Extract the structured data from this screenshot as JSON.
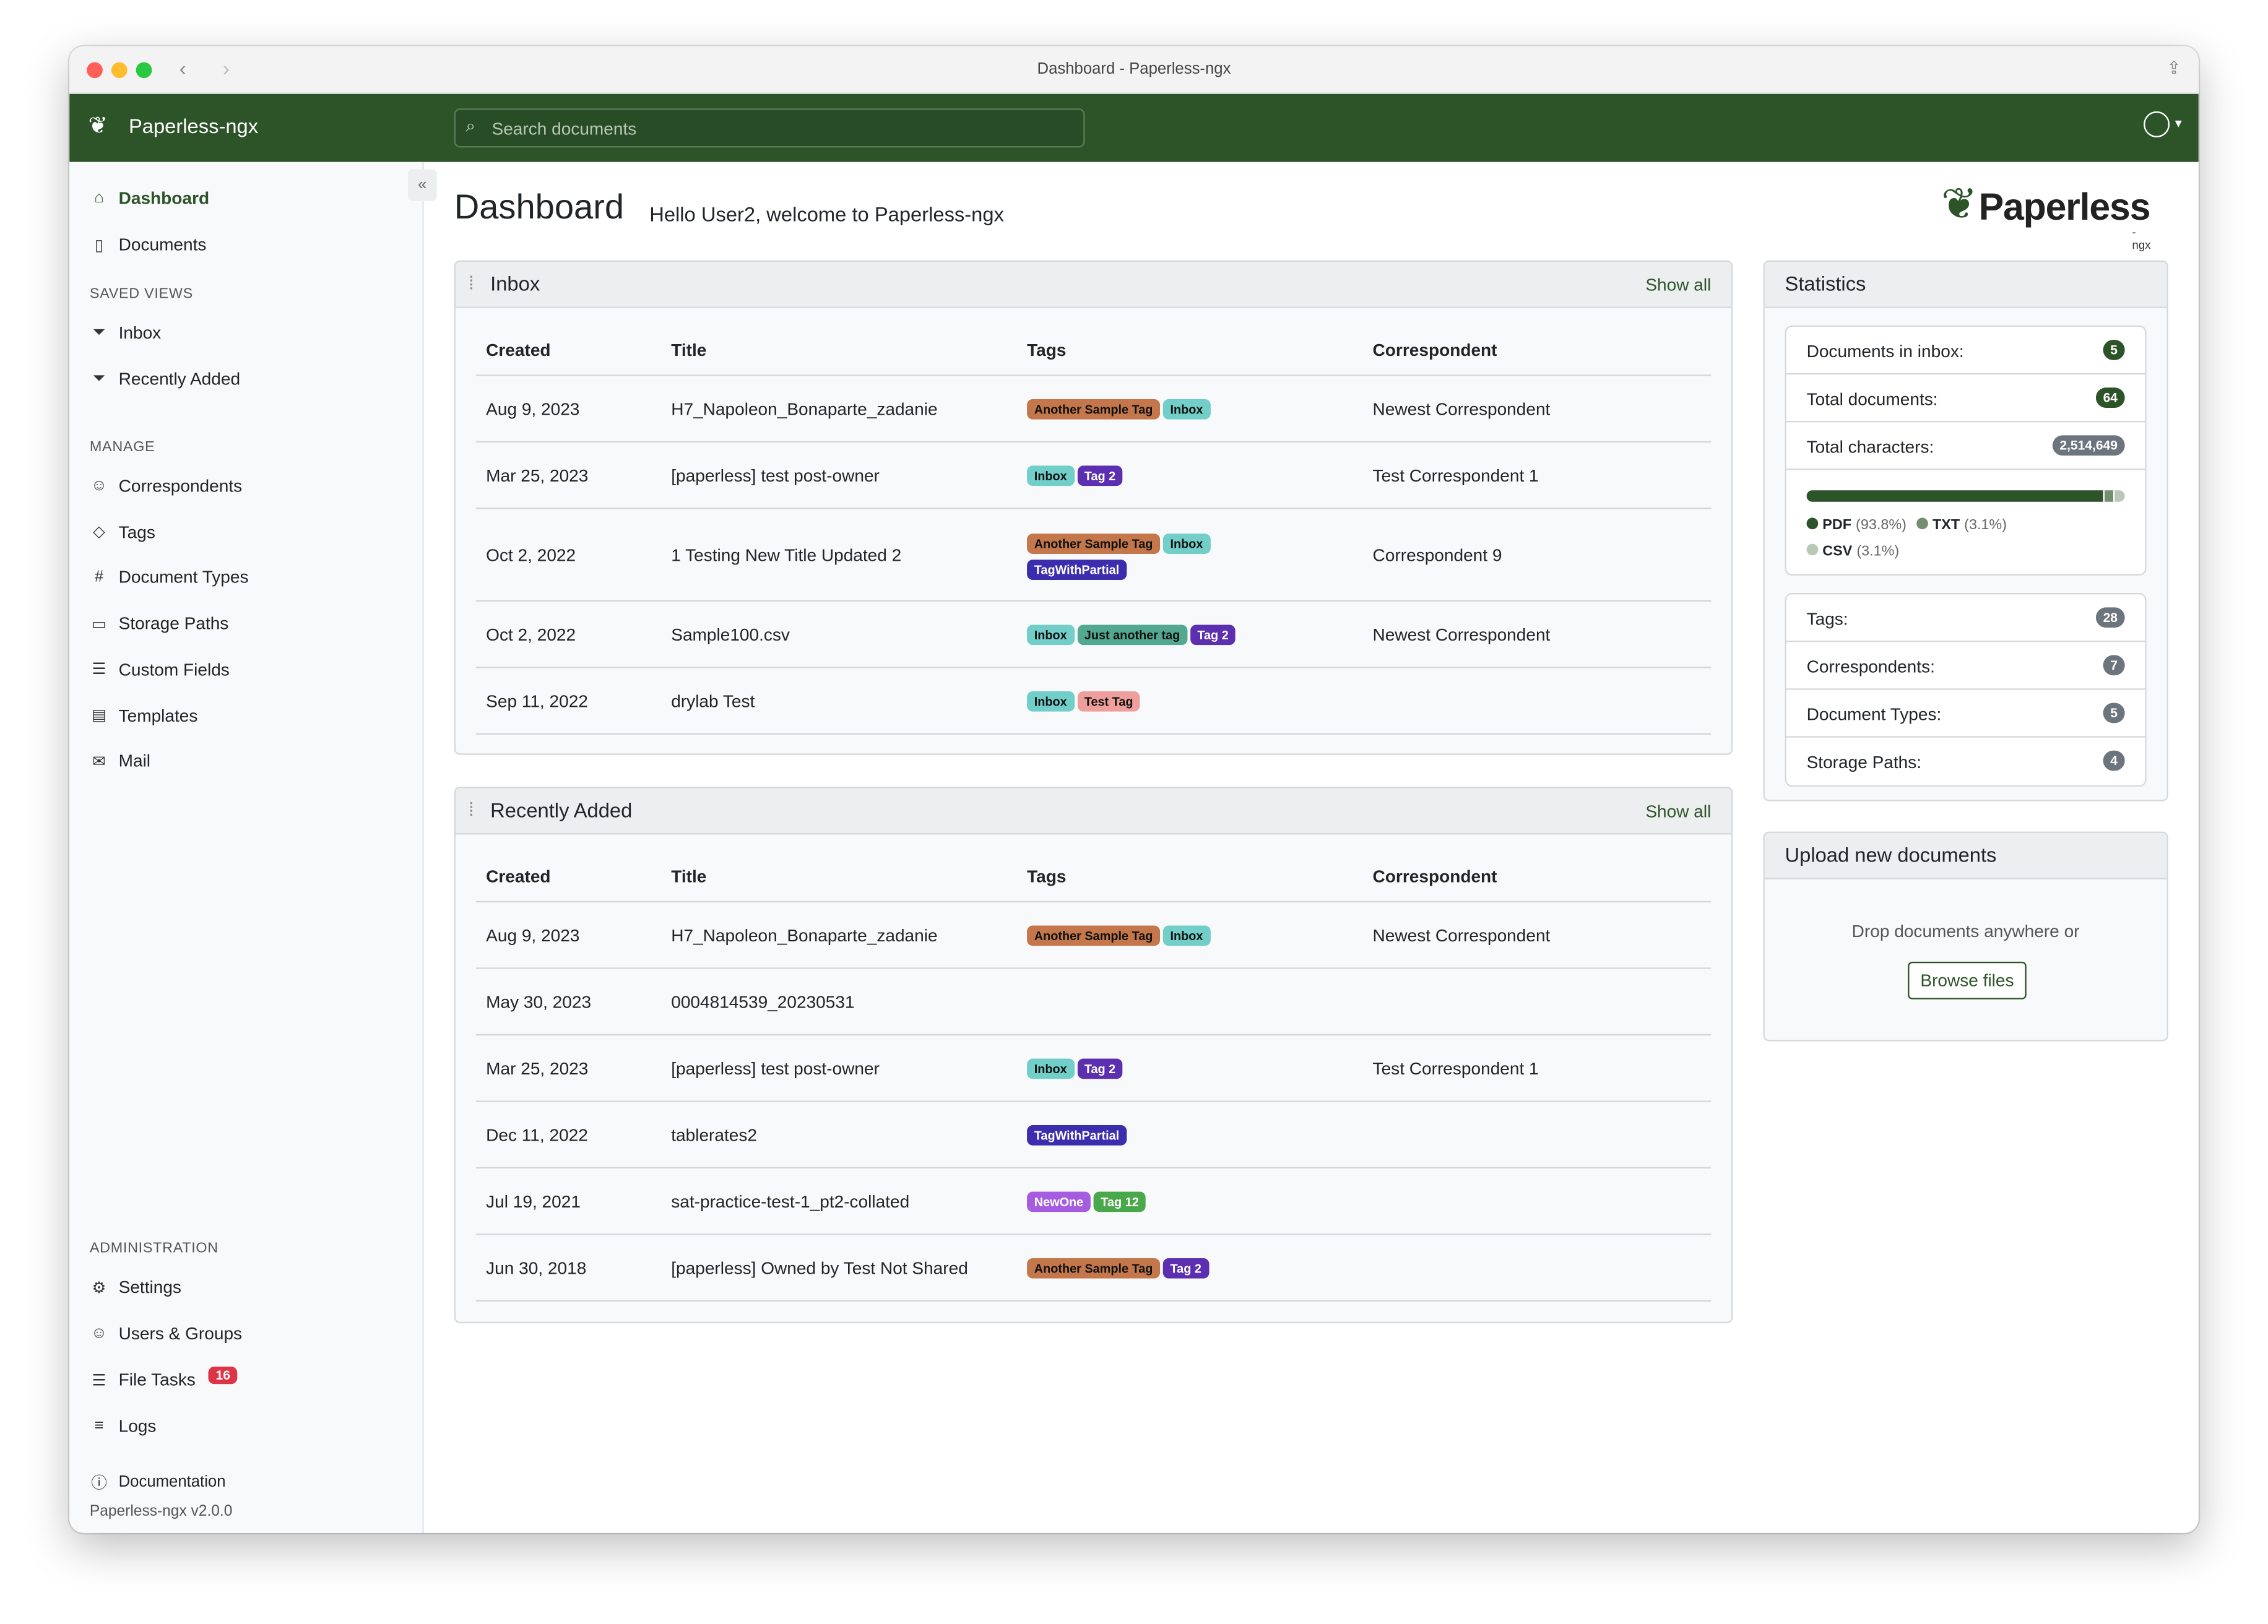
{
  "window": {
    "title": "Dashboard - Paperless-ngx"
  },
  "navbar": {
    "brand": "Paperless-ngx",
    "search_placeholder": "Search documents"
  },
  "sidebar": {
    "main": [
      {
        "label": "Dashboard",
        "icon": "house-icon"
      },
      {
        "label": "Documents",
        "icon": "file-icon"
      }
    ],
    "saved_views_heading": "SAVED VIEWS",
    "saved_views": [
      {
        "label": "Inbox"
      },
      {
        "label": "Recently Added"
      }
    ],
    "manage_heading": "MANAGE",
    "manage": [
      {
        "label": "Correspondents"
      },
      {
        "label": "Tags"
      },
      {
        "label": "Document Types"
      },
      {
        "label": "Storage Paths"
      },
      {
        "label": "Custom Fields"
      },
      {
        "label": "Templates"
      },
      {
        "label": "Mail"
      }
    ],
    "admin_heading": "ADMINISTRATION",
    "admin": [
      {
        "label": "Settings"
      },
      {
        "label": "Users & Groups"
      },
      {
        "label": "File Tasks",
        "badge": "16"
      },
      {
        "label": "Logs"
      }
    ],
    "documentation": "Documentation",
    "version": "Paperless-ngx v2.0.0"
  },
  "page": {
    "title": "Dashboard",
    "welcome": "Hello User2, welcome to Paperless-ngx",
    "logo_text": "Paperless",
    "logo_sub": "-ngx"
  },
  "columns": [
    "Created",
    "Title",
    "Tags",
    "Correspondent"
  ],
  "tag_colors": {
    "Another Sample Tag": "#c3774a",
    "Inbox": "#72cec8",
    "Tag 2": "#5b2fb0",
    "TagWithPartial": "#3c2dae",
    "Just another tag": "#52a98f",
    "Test Tag": "#ef9f9b",
    "NewOne": "#a55ce0",
    "Tag 12": "#49a84a"
  },
  "inbox": {
    "title": "Inbox",
    "show_all": "Show all",
    "rows": [
      {
        "created": "Aug 9, 2023",
        "title": "H7_Napoleon_Bonaparte_zadanie",
        "tags": [
          "Another Sample Tag",
          "Inbox"
        ],
        "correspondent": "Newest Correspondent"
      },
      {
        "created": "Mar 25, 2023",
        "title": "[paperless] test post-owner",
        "tags": [
          "Inbox",
          "Tag 2"
        ],
        "correspondent": "Test Correspondent 1"
      },
      {
        "created": "Oct 2, 2022",
        "title": "1 Testing New Title Updated 2",
        "tags": [
          "Another Sample Tag",
          "Inbox",
          "TagWithPartial"
        ],
        "correspondent": "Correspondent 9"
      },
      {
        "created": "Oct 2, 2022",
        "title": "Sample100.csv",
        "tags": [
          "Inbox",
          "Just another tag",
          "Tag 2"
        ],
        "correspondent": "Newest Correspondent"
      },
      {
        "created": "Sep 11, 2022",
        "title": "drylab Test",
        "tags": [
          "Inbox",
          "Test Tag"
        ],
        "correspondent": ""
      }
    ]
  },
  "recent": {
    "title": "Recently Added",
    "show_all": "Show all",
    "rows": [
      {
        "created": "Aug 9, 2023",
        "title": "H7_Napoleon_Bonaparte_zadanie",
        "tags": [
          "Another Sample Tag",
          "Inbox"
        ],
        "correspondent": "Newest Correspondent"
      },
      {
        "created": "May 30, 2023",
        "title": "0004814539_20230531",
        "tags": [],
        "correspondent": ""
      },
      {
        "created": "Mar 25, 2023",
        "title": "[paperless] test post-owner",
        "tags": [
          "Inbox",
          "Tag 2"
        ],
        "correspondent": "Test Correspondent 1"
      },
      {
        "created": "Dec 11, 2022",
        "title": "tablerates2",
        "tags": [
          "TagWithPartial"
        ],
        "correspondent": ""
      },
      {
        "created": "Jul 19, 2021",
        "title": "sat-practice-test-1_pt2-collated",
        "tags": [
          "NewOne",
          "Tag 12"
        ],
        "correspondent": ""
      },
      {
        "created": "Jun 30, 2018",
        "title": "[paperless] Owned by Test Not Shared",
        "tags": [
          "Another Sample Tag",
          "Tag 2"
        ],
        "correspondent": ""
      }
    ]
  },
  "statistics": {
    "title": "Statistics",
    "top": [
      {
        "label": "Documents in inbox:",
        "value": "5",
        "color": "#2c5428"
      },
      {
        "label": "Total documents:",
        "value": "64",
        "color": "#2c5428"
      },
      {
        "label": "Total characters:",
        "value": "2,514,649",
        "color": "#6c757d"
      }
    ],
    "file_types": [
      {
        "name": "PDF",
        "pct": "93.8%",
        "value": 93.8,
        "color": "#2c5428"
      },
      {
        "name": "TXT",
        "pct": "3.1%",
        "value": 3.1,
        "color": "#768e70"
      },
      {
        "name": "CSV",
        "pct": "3.1%",
        "value": 3.1,
        "color": "#b9c8b7"
      }
    ],
    "bottom": [
      {
        "label": "Tags:",
        "value": "28"
      },
      {
        "label": "Correspondents:",
        "value": "7"
      },
      {
        "label": "Document Types:",
        "value": "5"
      },
      {
        "label": "Storage Paths:",
        "value": "4"
      }
    ]
  },
  "upload": {
    "title": "Upload new documents",
    "drop_text": "Drop documents anywhere or",
    "browse": "Browse files"
  }
}
